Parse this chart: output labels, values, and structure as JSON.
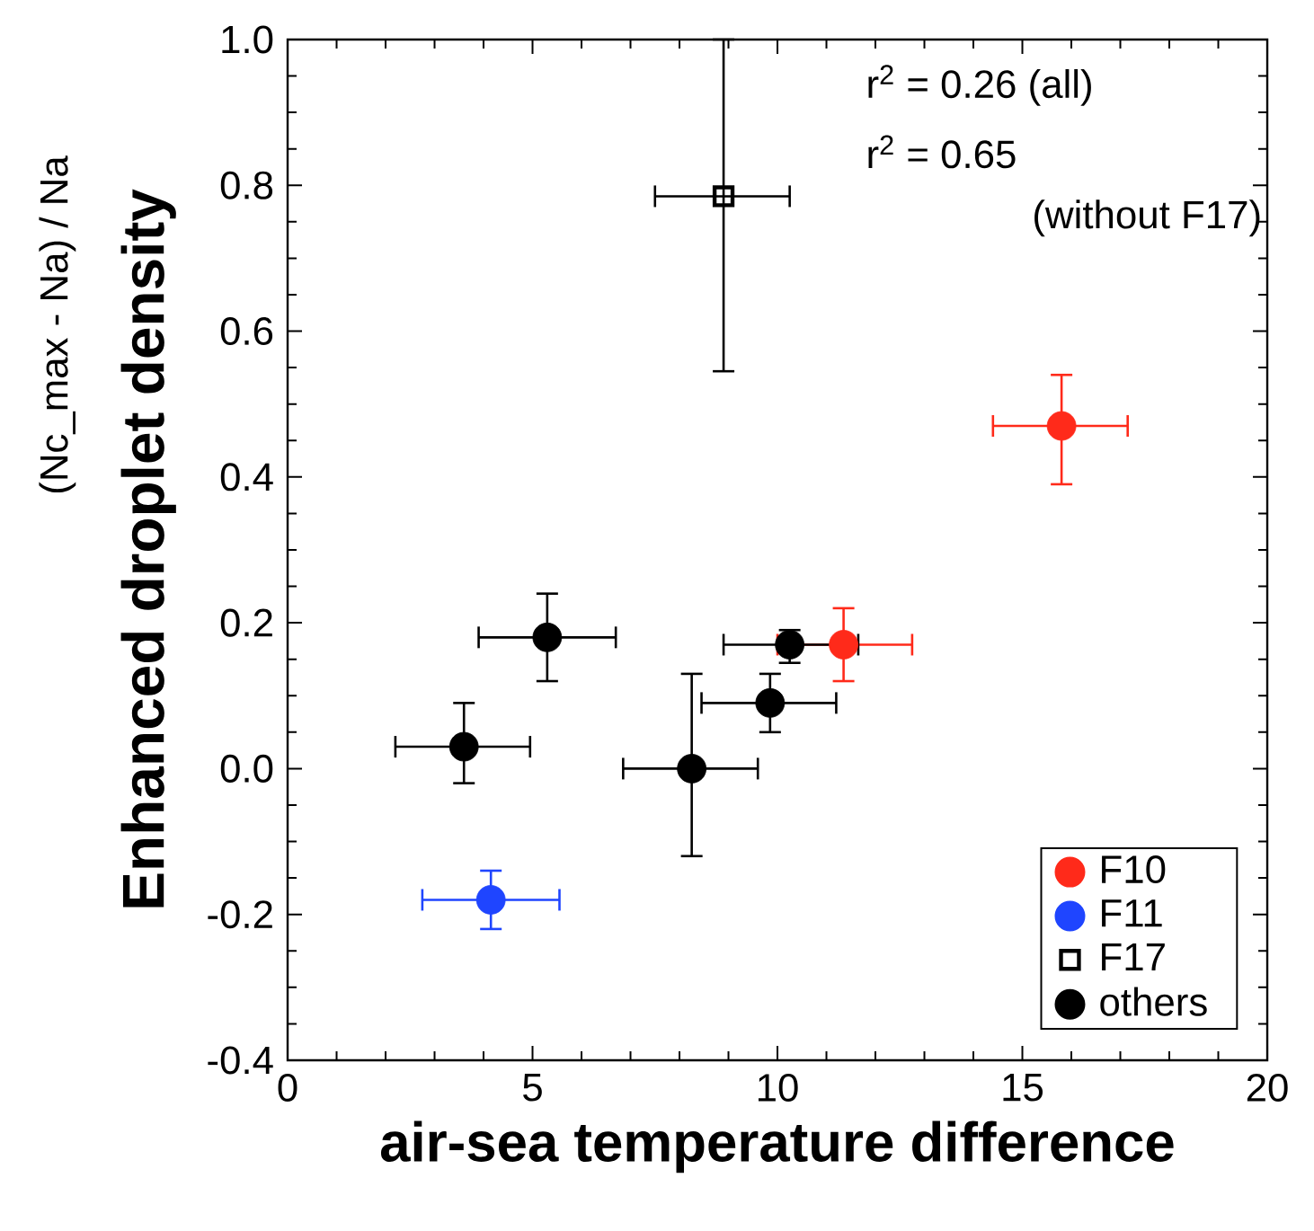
{
  "chart_data": {
    "type": "scatter",
    "xlabel": "air-sea temperature difference",
    "ylabel": "Enhanced droplet density",
    "xlim": [
      0,
      20
    ],
    "ylim": [
      -0.4,
      1.0
    ],
    "xticks": [
      0,
      5,
      10,
      15,
      20
    ],
    "yticks": [
      {
        "value": -0.4,
        "label": "-0.4"
      },
      {
        "value": -0.2,
        "label": "-0.2"
      },
      {
        "value": 0,
        "label": "0.0"
      },
      {
        "value": 0.2,
        "label": "0.2"
      },
      {
        "value": 0.4,
        "label": "0.4"
      },
      {
        "value": 0.6,
        "label": "0.6"
      },
      {
        "value": 0.8,
        "label": "0.8"
      },
      {
        "value": 1.0,
        "label": "1.0"
      }
    ],
    "grid": false,
    "legend": "bottom right",
    "annotations": [
      "r$^{2}$ = 0.26 (all)",
      "r$^{2}$ = 0.65",
      "(without F17)",
      "(Nc_max - Na) / Na"
    ],
    "series": [
      {
        "name": "F10",
        "color": "#ff2a1a",
        "marker": "circle",
        "x": [
          15.8,
          11.35
        ],
        "values": [
          0.47,
          0.17
        ],
        "errors": [
          [
            0.39,
            0.54
          ],
          [
            0.12,
            0.22
          ]
        ],
        "xerrors": [
          [
            14.4,
            17.15
          ],
          [
            10.0,
            12.75
          ]
        ]
      },
      {
        "name": "F11",
        "color": "#1f45ff",
        "marker": "circle",
        "x": [
          4.15
        ],
        "values": [
          -0.18
        ],
        "errors": [
          [
            -0.22,
            -0.14
          ]
        ],
        "xerrors": [
          [
            2.75,
            5.55
          ]
        ]
      },
      {
        "name": "F17",
        "color": "#000000",
        "marker": "square",
        "x": [
          8.9
        ],
        "values": [
          0.785
        ],
        "errors": [
          [
            0.545,
            1.0
          ]
        ],
        "xerrors": [
          [
            7.5,
            10.25
          ]
        ]
      },
      {
        "name": "others",
        "color": "#000000",
        "marker": "circle",
        "x": [
          5.3,
          3.6,
          8.25,
          9.85,
          10.25
        ],
        "values": [
          0.18,
          0.03,
          0.0,
          0.09,
          0.17
        ],
        "errors": [
          [
            0.12,
            0.24
          ],
          [
            -0.02,
            0.09
          ],
          [
            -0.12,
            0.13
          ],
          [
            0.05,
            0.13
          ],
          [
            0.145,
            0.19
          ]
        ],
        "xerrors": [
          [
            3.9,
            6.7
          ],
          [
            2.2,
            4.95
          ],
          [
            6.85,
            9.6
          ],
          [
            8.45,
            11.2
          ],
          [
            8.9,
            11.65
          ]
        ]
      }
    ]
  }
}
